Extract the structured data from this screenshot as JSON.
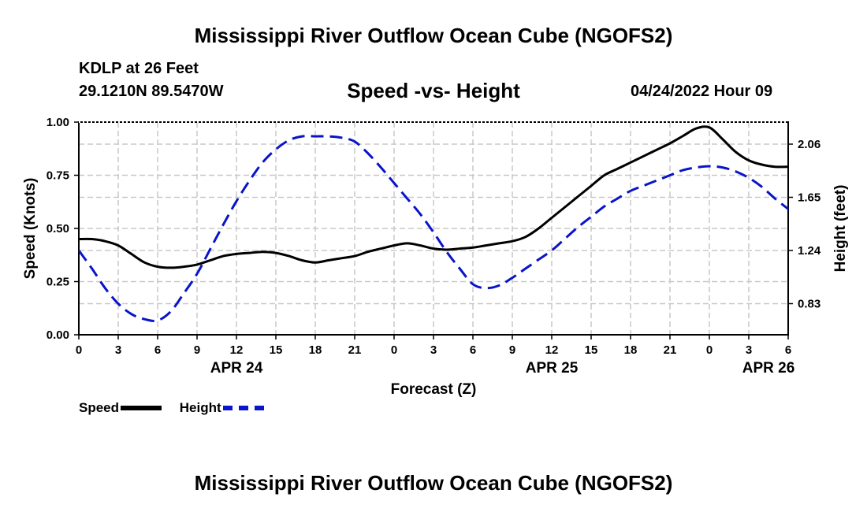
{
  "page": {
    "title_top": "Mississippi River Outflow Ocean Cube (NGOFS2)",
    "title_bottom": "Mississippi River Outflow Ocean Cube (NGOFS2)",
    "station": "KDLP at 26 Feet",
    "coords": "29.1210N  89.5470W",
    "datetime": "04/24/2022 Hour 09"
  },
  "legend": {
    "speed_label": "Speed",
    "height_label": "Height"
  },
  "chart_data": {
    "type": "line",
    "title": "Speed -vs- Height",
    "xlabel": "Forecast (Z)",
    "ylabel": "Speed (Knots)",
    "y2label": "Height (feet)",
    "xlim": [
      0,
      54
    ],
    "ylim": [
      0,
      1
    ],
    "y2lim": [
      0.59,
      2.23
    ],
    "x_ticks": [
      0,
      3,
      6,
      9,
      12,
      15,
      18,
      21,
      24,
      27,
      30,
      33,
      36,
      39,
      42,
      45,
      48,
      51,
      54
    ],
    "x_tick_labels": [
      "0",
      "3",
      "6",
      "9",
      "12",
      "15",
      "18",
      "21",
      "0",
      "3",
      "6",
      "9",
      "12",
      "15",
      "18",
      "21",
      "0",
      "3",
      "6"
    ],
    "date_labels": [
      {
        "x": 12,
        "label": "APR 24"
      },
      {
        "x": 36,
        "label": "APR 25"
      },
      {
        "x": 52.5,
        "label": "APR 26"
      }
    ],
    "y_ticks": [
      0,
      0.25,
      0.5,
      0.75,
      1.0
    ],
    "y_tick_labels": [
      "0.00",
      "0.25",
      "0.50",
      "0.75",
      "1.00"
    ],
    "y2_ticks": [
      0.83,
      1.24,
      1.65,
      2.06
    ],
    "y2_tick_labels": [
      "0.83",
      "1.24",
      "1.65",
      "2.06"
    ],
    "series": [
      {
        "name": "Speed",
        "axis": "left",
        "color": "#000000",
        "style": "solid",
        "x": [
          0,
          1,
          2,
          3,
          4,
          5,
          6,
          7,
          8,
          9,
          10,
          11,
          12,
          13,
          14,
          15,
          16,
          17,
          18,
          19,
          20,
          21,
          22,
          23,
          24,
          25,
          26,
          27,
          28,
          29,
          30,
          31,
          32,
          33,
          34,
          35,
          36,
          37,
          38,
          39,
          40,
          41,
          42,
          43,
          44,
          45,
          46,
          47,
          48,
          49,
          50,
          51,
          52,
          53,
          54
        ],
        "values": [
          0.45,
          0.45,
          0.44,
          0.42,
          0.38,
          0.34,
          0.32,
          0.315,
          0.32,
          0.33,
          0.35,
          0.37,
          0.38,
          0.385,
          0.39,
          0.385,
          0.37,
          0.35,
          0.34,
          0.35,
          0.36,
          0.37,
          0.39,
          0.405,
          0.42,
          0.43,
          0.42,
          0.405,
          0.4,
          0.405,
          0.41,
          0.42,
          0.43,
          0.44,
          0.46,
          0.5,
          0.55,
          0.6,
          0.65,
          0.7,
          0.75,
          0.78,
          0.81,
          0.84,
          0.87,
          0.9,
          0.935,
          0.97,
          0.975,
          0.92,
          0.86,
          0.82,
          0.8,
          0.79,
          0.79
        ]
      },
      {
        "name": "Height",
        "axis": "right",
        "color": "#0a14c8",
        "style": "dashed",
        "x": [
          0,
          1,
          2,
          3,
          4,
          5,
          6,
          7,
          8,
          9,
          10,
          11,
          12,
          13,
          14,
          15,
          16,
          17,
          18,
          19,
          20,
          21,
          22,
          23,
          24,
          25,
          26,
          27,
          28,
          29,
          30,
          31,
          32,
          33,
          34,
          35,
          36,
          37,
          38,
          39,
          40,
          41,
          42,
          43,
          44,
          45,
          46,
          47,
          48,
          49,
          50,
          51,
          52,
          53,
          54
        ],
        "values": [
          1.24,
          1.1,
          0.95,
          0.83,
          0.75,
          0.71,
          0.7,
          0.77,
          0.91,
          1.06,
          1.25,
          1.44,
          1.62,
          1.78,
          1.92,
          2.02,
          2.09,
          2.12,
          2.12,
          2.12,
          2.11,
          2.08,
          1.99,
          1.88,
          1.76,
          1.64,
          1.52,
          1.38,
          1.23,
          1.1,
          0.98,
          0.95,
          0.97,
          1.03,
          1.1,
          1.17,
          1.24,
          1.33,
          1.42,
          1.5,
          1.58,
          1.64,
          1.7,
          1.74,
          1.78,
          1.82,
          1.86,
          1.88,
          1.89,
          1.88,
          1.85,
          1.8,
          1.73,
          1.64,
          1.56
        ]
      }
    ]
  }
}
